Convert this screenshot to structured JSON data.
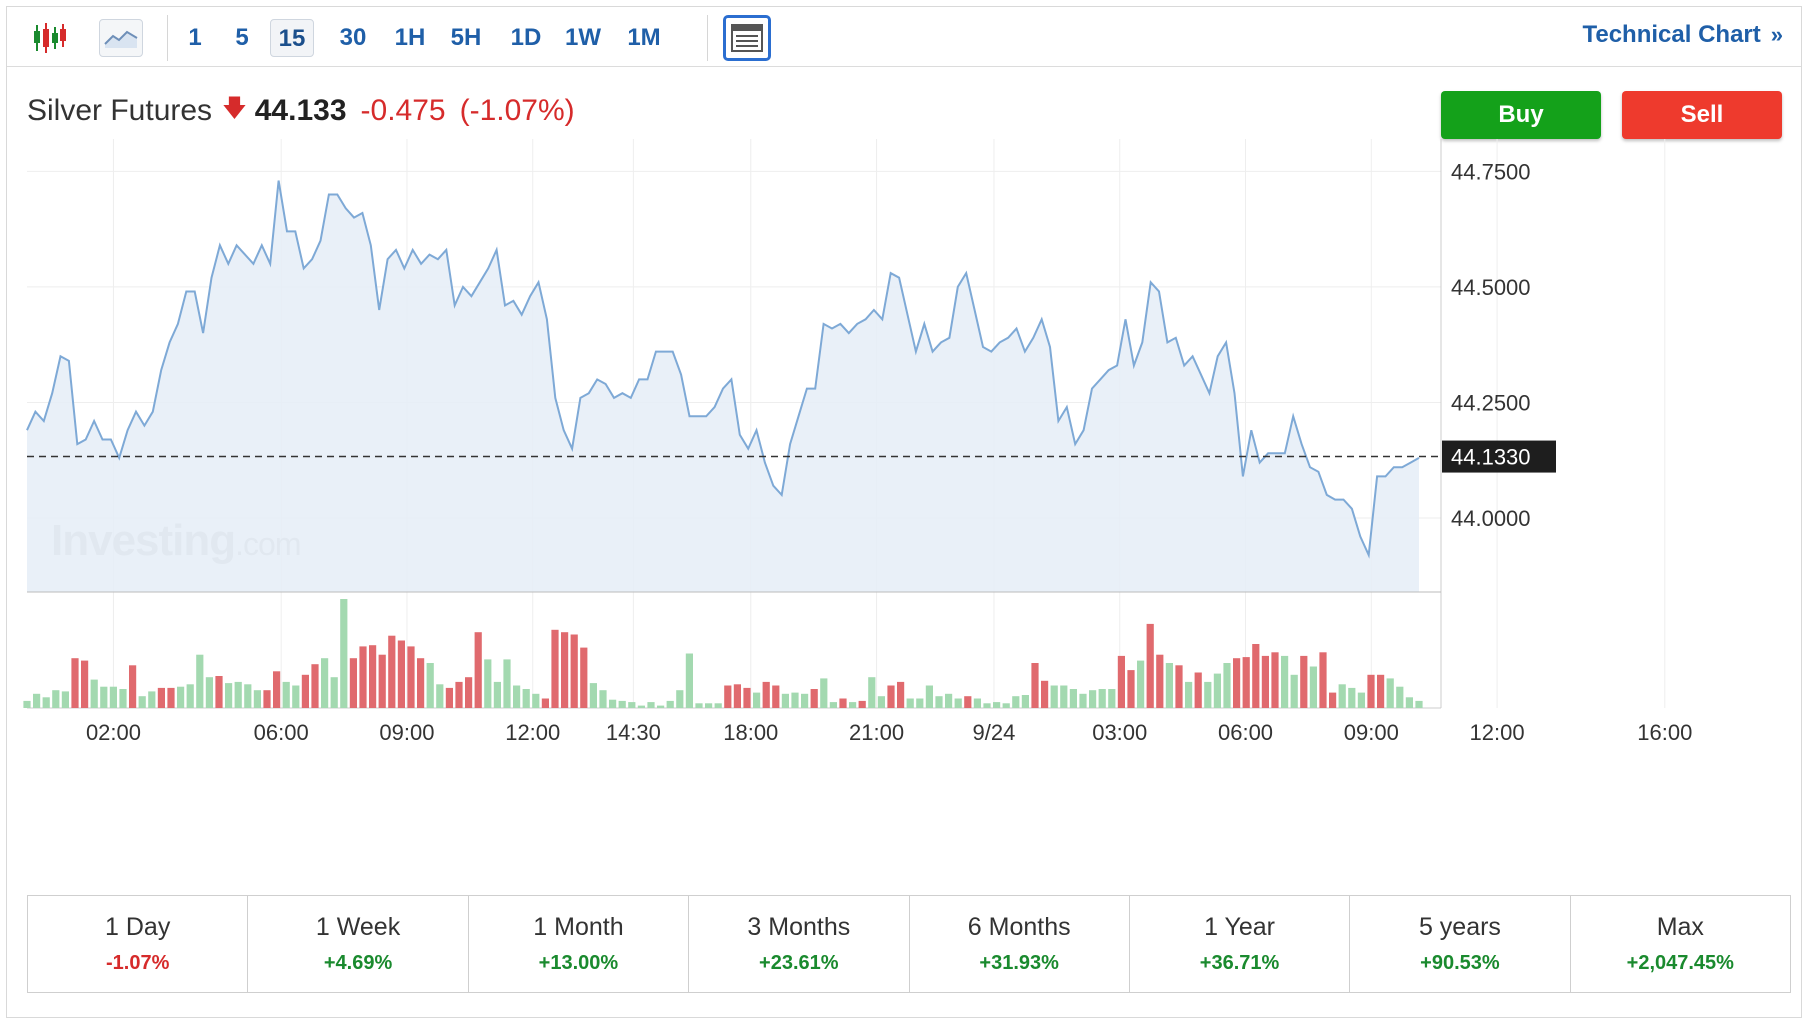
{
  "toolbar": {
    "intervals": [
      "1",
      "5",
      "15",
      "30",
      "1H",
      "5H",
      "1D",
      "1W",
      "1M"
    ],
    "active_interval": "15",
    "technical_chart_label": "Technical Chart",
    "technical_chart_chevron": "»",
    "icons": [
      "candlestick-icon",
      "line-chart-icon",
      "table-icon"
    ]
  },
  "instrument": {
    "name": "Silver Futures",
    "direction_glyph": "🡇",
    "price": "44.133",
    "change": "-0.475",
    "change_pct": "(-1.07%)"
  },
  "actions": {
    "buy_label": "Buy",
    "sell_label": "Sell"
  },
  "colors": {
    "line": "#7ea9d6",
    "fill": "#e5edf7",
    "vol_up": "#a3d9b0",
    "vol_down": "#e06a6e",
    "buy": "#14a11a",
    "sell": "#ee3a2d",
    "link": "#1f5fa8"
  },
  "watermark": {
    "brand": "Investing",
    "suffix": ".com"
  },
  "chart_data": {
    "type": "area",
    "title": "",
    "xlabel": "",
    "ylabel": "",
    "ylim": [
      43.84,
      44.82
    ],
    "yticks": [
      "44.7500",
      "44.5000",
      "44.2500",
      "44.0000"
    ],
    "ytick_values": [
      44.75,
      44.5,
      44.25,
      44.0
    ],
    "current_value_label": "44.1330",
    "current_value": 44.133,
    "xticks": [
      "02:00",
      "06:00",
      "09:00",
      "12:00",
      "14:30",
      "18:00",
      "21:00",
      "9/24",
      "03:00",
      "06:00",
      "09:00",
      "12:00",
      "16:00"
    ],
    "xtick_index": [
      9,
      29,
      44,
      59,
      71,
      85,
      100,
      114,
      129,
      144,
      159,
      174,
      194
    ],
    "grid": true,
    "series": [
      {
        "values": [
          44.19,
          44.23,
          44.21,
          44.27,
          44.35,
          44.34,
          44.16,
          44.17,
          44.21,
          44.17,
          44.17,
          44.13,
          44.19,
          44.23,
          44.2,
          44.23,
          44.32,
          44.38,
          44.42,
          44.49,
          44.49,
          44.4,
          44.52,
          44.59,
          44.55,
          44.59,
          44.57,
          44.55,
          44.59,
          44.55,
          44.73,
          44.62,
          44.62,
          44.54,
          44.56,
          44.6,
          44.7,
          44.7,
          44.67,
          44.65,
          44.66,
          44.59,
          44.45,
          44.56,
          44.58,
          44.54,
          44.58,
          44.55,
          44.57,
          44.56,
          44.58,
          44.46,
          44.5,
          44.48,
          44.51,
          44.54,
          44.58,
          44.46,
          44.47,
          44.44,
          44.48,
          44.51,
          44.43,
          44.26,
          44.19,
          44.15,
          44.26,
          44.27,
          44.3,
          44.29,
          44.26,
          44.27,
          44.26,
          44.3,
          44.3,
          44.36,
          44.36,
          44.36,
          44.31,
          44.22,
          44.22,
          44.22,
          44.24,
          44.28,
          44.3,
          44.18,
          44.15,
          44.19,
          44.12,
          44.07,
          44.05,
          44.16,
          44.22,
          44.28,
          44.28,
          44.42,
          44.41,
          44.42,
          44.4,
          44.42,
          44.43,
          44.45,
          44.43,
          44.53,
          44.52,
          44.44,
          44.36,
          44.42,
          44.36,
          44.38,
          44.39,
          44.5,
          44.53,
          44.45,
          44.37,
          44.36,
          44.38,
          44.39,
          44.41,
          44.36,
          44.39,
          44.43,
          44.37,
          44.21,
          44.24,
          44.16,
          44.19,
          44.28,
          44.3,
          44.32,
          44.33,
          44.43,
          44.33,
          44.38,
          44.51,
          44.49,
          44.38,
          44.39,
          44.33,
          44.35,
          44.31,
          44.27,
          44.35,
          44.38,
          44.27,
          44.09,
          44.19,
          44.12,
          44.14,
          44.14,
          44.14,
          44.22,
          44.16,
          44.11,
          44.1,
          44.05,
          44.04,
          44.04,
          44.02,
          43.96,
          43.92,
          44.09,
          44.09,
          44.11,
          44.11,
          44.12,
          44.13
        ]
      }
    ],
    "volume": [
      {
        "v": 6,
        "d": false
      },
      {
        "v": 12,
        "d": false
      },
      {
        "v": 9,
        "d": false
      },
      {
        "v": 15,
        "d": false
      },
      {
        "v": 14,
        "d": false
      },
      {
        "v": 42,
        "d": true
      },
      {
        "v": 40,
        "d": true
      },
      {
        "v": 24,
        "d": false
      },
      {
        "v": 18,
        "d": false
      },
      {
        "v": 18,
        "d": false
      },
      {
        "v": 16,
        "d": false
      },
      {
        "v": 36,
        "d": true
      },
      {
        "v": 10,
        "d": false
      },
      {
        "v": 14,
        "d": false
      },
      {
        "v": 17,
        "d": true
      },
      {
        "v": 17,
        "d": true
      },
      {
        "v": 18,
        "d": false
      },
      {
        "v": 20,
        "d": false
      },
      {
        "v": 45,
        "d": false
      },
      {
        "v": 26,
        "d": false
      },
      {
        "v": 27,
        "d": true
      },
      {
        "v": 21,
        "d": false
      },
      {
        "v": 22,
        "d": false
      },
      {
        "v": 20,
        "d": false
      },
      {
        "v": 15,
        "d": false
      },
      {
        "v": 15,
        "d": true
      },
      {
        "v": 31,
        "d": true
      },
      {
        "v": 22,
        "d": false
      },
      {
        "v": 19,
        "d": false
      },
      {
        "v": 28,
        "d": true
      },
      {
        "v": 37,
        "d": true
      },
      {
        "v": 42,
        "d": false
      },
      {
        "v": 26,
        "d": false
      },
      {
        "v": 92,
        "d": false
      },
      {
        "v": 42,
        "d": true
      },
      {
        "v": 52,
        "d": true
      },
      {
        "v": 53,
        "d": true
      },
      {
        "v": 45,
        "d": true
      },
      {
        "v": 61,
        "d": true
      },
      {
        "v": 57,
        "d": true
      },
      {
        "v": 52,
        "d": true
      },
      {
        "v": 42,
        "d": true
      },
      {
        "v": 38,
        "d": false
      },
      {
        "v": 20,
        "d": false
      },
      {
        "v": 17,
        "d": true
      },
      {
        "v": 22,
        "d": true
      },
      {
        "v": 26,
        "d": true
      },
      {
        "v": 64,
        "d": true
      },
      {
        "v": 41,
        "d": false
      },
      {
        "v": 22,
        "d": false
      },
      {
        "v": 41,
        "d": false
      },
      {
        "v": 19,
        "d": false
      },
      {
        "v": 16,
        "d": false
      },
      {
        "v": 12,
        "d": false
      },
      {
        "v": 8,
        "d": true
      },
      {
        "v": 66,
        "d": true
      },
      {
        "v": 64,
        "d": true
      },
      {
        "v": 62,
        "d": true
      },
      {
        "v": 51,
        "d": true
      },
      {
        "v": 21,
        "d": false
      },
      {
        "v": 15,
        "d": false
      },
      {
        "v": 7,
        "d": false
      },
      {
        "v": 6,
        "d": false
      },
      {
        "v": 5,
        "d": false
      },
      {
        "v": 2,
        "d": false
      },
      {
        "v": 5,
        "d": false
      },
      {
        "v": 2,
        "d": false
      },
      {
        "v": 6,
        "d": false
      },
      {
        "v": 15,
        "d": false
      },
      {
        "v": 46,
        "d": false
      },
      {
        "v": 4,
        "d": false
      },
      {
        "v": 4,
        "d": false
      },
      {
        "v": 4,
        "d": false
      },
      {
        "v": 19,
        "d": true
      },
      {
        "v": 20,
        "d": true
      },
      {
        "v": 17,
        "d": true
      },
      {
        "v": 13,
        "d": false
      },
      {
        "v": 22,
        "d": true
      },
      {
        "v": 19,
        "d": true
      },
      {
        "v": 12,
        "d": false
      },
      {
        "v": 13,
        "d": false
      },
      {
        "v": 12,
        "d": false
      },
      {
        "v": 16,
        "d": true
      },
      {
        "v": 25,
        "d": false
      },
      {
        "v": 5,
        "d": false
      },
      {
        "v": 8,
        "d": true
      },
      {
        "v": 5,
        "d": false
      },
      {
        "v": 6,
        "d": true
      },
      {
        "v": 26,
        "d": false
      },
      {
        "v": 10,
        "d": false
      },
      {
        "v": 19,
        "d": true
      },
      {
        "v": 22,
        "d": true
      },
      {
        "v": 8,
        "d": false
      },
      {
        "v": 8,
        "d": false
      },
      {
        "v": 19,
        "d": false
      },
      {
        "v": 10,
        "d": false
      },
      {
        "v": 12,
        "d": false
      },
      {
        "v": 8,
        "d": false
      },
      {
        "v": 10,
        "d": true
      },
      {
        "v": 8,
        "d": false
      },
      {
        "v": 4,
        "d": false
      },
      {
        "v": 5,
        "d": false
      },
      {
        "v": 4,
        "d": false
      },
      {
        "v": 10,
        "d": false
      },
      {
        "v": 11,
        "d": false
      },
      {
        "v": 38,
        "d": true
      },
      {
        "v": 23,
        "d": true
      },
      {
        "v": 19,
        "d": false
      },
      {
        "v": 19,
        "d": false
      },
      {
        "v": 16,
        "d": false
      },
      {
        "v": 12,
        "d": false
      },
      {
        "v": 15,
        "d": false
      },
      {
        "v": 16,
        "d": false
      },
      {
        "v": 16,
        "d": false
      },
      {
        "v": 44,
        "d": true
      },
      {
        "v": 32,
        "d": true
      },
      {
        "v": 40,
        "d": false
      },
      {
        "v": 71,
        "d": true
      },
      {
        "v": 45,
        "d": true
      },
      {
        "v": 38,
        "d": false
      },
      {
        "v": 36,
        "d": true
      },
      {
        "v": 22,
        "d": false
      },
      {
        "v": 30,
        "d": true
      },
      {
        "v": 22,
        "d": false
      },
      {
        "v": 29,
        "d": false
      },
      {
        "v": 38,
        "d": false
      },
      {
        "v": 42,
        "d": true
      },
      {
        "v": 43,
        "d": true
      },
      {
        "v": 54,
        "d": true
      },
      {
        "v": 44,
        "d": true
      },
      {
        "v": 47,
        "d": true
      },
      {
        "v": 44,
        "d": false
      },
      {
        "v": 28,
        "d": false
      },
      {
        "v": 44,
        "d": true
      },
      {
        "v": 35,
        "d": false
      },
      {
        "v": 47,
        "d": true
      },
      {
        "v": 13,
        "d": true
      },
      {
        "v": 20,
        "d": false
      },
      {
        "v": 17,
        "d": false
      },
      {
        "v": 13,
        "d": false
      },
      {
        "v": 28,
        "d": true
      },
      {
        "v": 28,
        "d": true
      },
      {
        "v": 25,
        "d": false
      },
      {
        "v": 18,
        "d": false
      },
      {
        "v": 9,
        "d": false
      },
      {
        "v": 6,
        "d": false
      }
    ]
  },
  "periods": [
    {
      "label": "1 Day",
      "value": "-1.07%",
      "dir": "down"
    },
    {
      "label": "1 Week",
      "value": "+4.69%",
      "dir": "up"
    },
    {
      "label": "1 Month",
      "value": "+13.00%",
      "dir": "up"
    },
    {
      "label": "3 Months",
      "value": "+23.61%",
      "dir": "up"
    },
    {
      "label": "6 Months",
      "value": "+31.93%",
      "dir": "up"
    },
    {
      "label": "1 Year",
      "value": "+36.71%",
      "dir": "up"
    },
    {
      "label": "5 years",
      "value": "+90.53%",
      "dir": "up"
    },
    {
      "label": "Max",
      "value": "+2,047.45%",
      "dir": "up"
    }
  ]
}
